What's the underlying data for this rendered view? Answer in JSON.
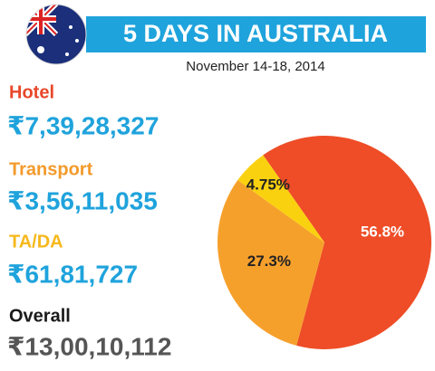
{
  "chart_data": {
    "type": "pie",
    "title": "5 DAYS IN AUSTRALIA",
    "subtitle": "November 14-18, 2014",
    "items": [
      {
        "label": "Hotel",
        "amount": "₹7,39,28,327",
        "color": "#e8472a"
      },
      {
        "label": "Transport",
        "amount": "₹3,56,11,035",
        "color": "#f39a2b"
      },
      {
        "label": "TA/DA",
        "amount": "₹61,81,727",
        "color": "#f6b81c"
      },
      {
        "label": "Overall",
        "amount": "₹13,00,10,112",
        "color": "#1a1a1a"
      }
    ],
    "amount_color": "#1fa3dc",
    "overall_amount_color": "#555555",
    "values": [
      56.8,
      27.3,
      4.75
    ],
    "value_labels": [
      "56.8%",
      "27.3%",
      "4.75%"
    ],
    "colors": [
      "#ee4d27",
      "#f6a02c",
      "#fad10f"
    ]
  }
}
